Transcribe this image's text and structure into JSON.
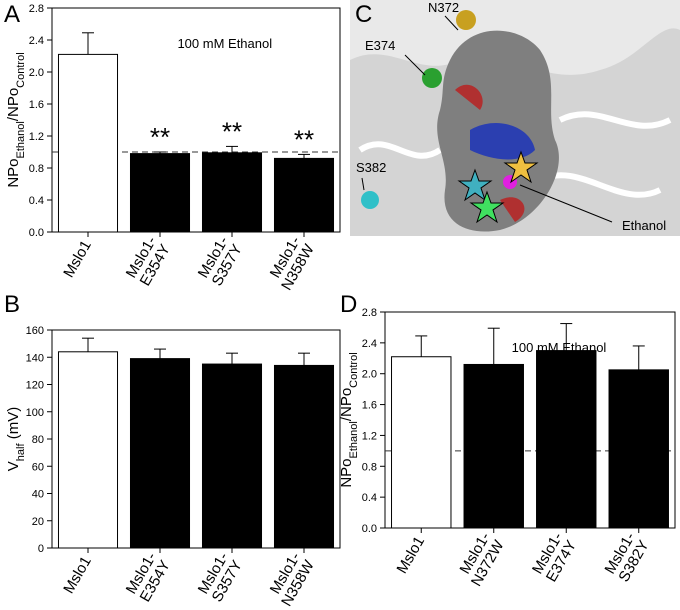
{
  "chart_data": [
    {
      "type": "bar",
      "panel_label": "A",
      "annotation": "100 mM Ethanol",
      "ylabel": [
        {
          "text": "NPo"
        },
        {
          "text": "Ethanol",
          "sub": true
        },
        {
          "text": "/NPo"
        },
        {
          "text": "Control",
          "sub": true
        }
      ],
      "categories": [
        [
          "Mslo1"
        ],
        [
          "Mslo1-",
          "E354Y"
        ],
        [
          "Mslo1-",
          "S357Y"
        ],
        [
          "Mslo1-",
          "N358W"
        ]
      ],
      "values": [
        2.22,
        0.98,
        0.99,
        0.92
      ],
      "errors": [
        0.27,
        0.02,
        0.08,
        0.05
      ],
      "significance": [
        null,
        "**",
        "**",
        "**"
      ],
      "colors": [
        "#ffffff",
        "#000000",
        "#000000",
        "#000000"
      ],
      "reference_line": 1.0,
      "ylim": [
        0,
        2.8
      ],
      "yticks": [
        {
          "value": 0,
          "label": "0.0"
        },
        0.4,
        0.8,
        1.2,
        1.6,
        {
          "value": 2,
          "label": "2.0"
        },
        2.4,
        2.8
      ]
    },
    {
      "type": "bar",
      "panel_label": "B",
      "ylabel": [
        {
          "text": "V"
        },
        {
          "text": "half",
          "sub": true
        },
        {
          "text": " (mV)"
        }
      ],
      "categories": [
        [
          "Mslo1"
        ],
        [
          "Mslo1-",
          "E354Y"
        ],
        [
          "Mslo1-",
          "S357Y"
        ],
        [
          "Mslo1-",
          "N358W"
        ]
      ],
      "values": [
        144,
        139,
        135,
        134
      ],
      "errors": [
        10,
        7,
        8,
        9
      ],
      "colors": [
        "#ffffff",
        "#000000",
        "#000000",
        "#000000"
      ],
      "ylim": [
        0,
        160
      ],
      "yticks": [
        0,
        20,
        40,
        60,
        80,
        100,
        120,
        140,
        160
      ]
    },
    {
      "type": "bar",
      "panel_label": "D",
      "annotation": "100 mM Ethanol",
      "ylabel": [
        {
          "text": "NPo"
        },
        {
          "text": "Ethanol",
          "sub": true
        },
        {
          "text": "/NPo"
        },
        {
          "text": "Control",
          "sub": true
        }
      ],
      "categories": [
        [
          "Mslo1"
        ],
        [
          "Mslo1-",
          "N372W"
        ],
        [
          "Mslo1-",
          "E374Y"
        ],
        [
          "Mslo1-",
          "S382Y"
        ]
      ],
      "values": [
        2.22,
        2.12,
        2.3,
        2.05
      ],
      "errors": [
        0.27,
        0.47,
        0.35,
        0.31
      ],
      "colors": [
        "#ffffff",
        "#000000",
        "#000000",
        "#000000"
      ],
      "reference_line": 1.0,
      "ylim": [
        0,
        2.8
      ],
      "yticks": [
        {
          "value": 0,
          "label": "0.0"
        },
        0.4,
        0.8,
        1.2,
        1.6,
        {
          "value": 2,
          "label": "2.0"
        },
        2.4,
        2.8
      ]
    }
  ],
  "panel_c": {
    "panel_label": "C",
    "labels": [
      "N372",
      "E374",
      "S382",
      "Ethanol"
    ]
  }
}
